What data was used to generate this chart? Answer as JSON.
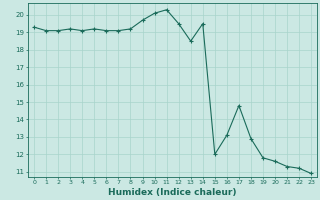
{
  "x": [
    0,
    1,
    2,
    3,
    4,
    5,
    6,
    7,
    8,
    9,
    10,
    11,
    12,
    13,
    14,
    15,
    16,
    17,
    18,
    19,
    20,
    21,
    22,
    23
  ],
  "y": [
    19.3,
    19.1,
    19.1,
    19.2,
    19.1,
    19.2,
    19.1,
    19.1,
    19.2,
    19.7,
    20.1,
    20.3,
    19.5,
    18.5,
    19.5,
    12.0,
    13.1,
    14.8,
    12.9,
    11.8,
    11.6,
    11.3,
    11.2,
    10.9
  ],
  "xlabel": "Humidex (Indice chaleur)",
  "bg_color": "#cbe8e3",
  "grid_color": "#a8d4cc",
  "line_color": "#1a6b5a",
  "ylim": [
    10.7,
    20.7
  ],
  "xlim": [
    -0.5,
    23.5
  ],
  "yticks": [
    11,
    12,
    13,
    14,
    15,
    16,
    17,
    18,
    19,
    20
  ],
  "xticks": [
    0,
    1,
    2,
    3,
    4,
    5,
    6,
    7,
    8,
    9,
    10,
    11,
    12,
    13,
    14,
    15,
    16,
    17,
    18,
    19,
    20,
    21,
    22,
    23
  ]
}
